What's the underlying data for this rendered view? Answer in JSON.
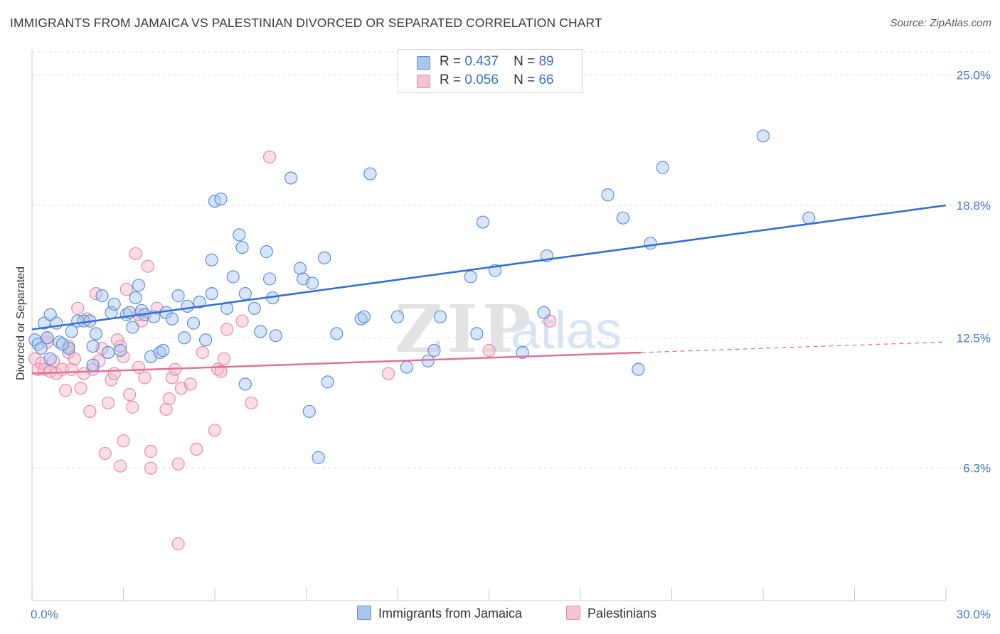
{
  "header": {
    "title": "IMMIGRANTS FROM JAMAICA VS PALESTINIAN DIVORCED OR SEPARATED CORRELATION CHART",
    "source": "Source: ZipAtlas.com"
  },
  "legend_top": {
    "rows": [
      {
        "r_label": "R =",
        "r_value": "0.437",
        "n_label": "N =",
        "n_value": "89"
      },
      {
        "r_label": "R =",
        "r_value": "0.056",
        "n_label": "N =",
        "n_value": "66"
      }
    ]
  },
  "legend_bottom": {
    "jamaica": "Immigrants from Jamaica",
    "palestinians": "Palestinians"
  },
  "watermark": {
    "zip": "ZIP",
    "atlas": "atlas"
  },
  "colors": {
    "blue_fill": "#a9c6ef",
    "blue_stroke": "#5b8fd8",
    "blue_line": "#2f6fd0",
    "pink_fill": "#f5b9cb",
    "pink_stroke": "#e88aa8",
    "pink_line": "#e0709a"
  },
  "chart_data": {
    "type": "scatter",
    "title": "IMMIGRANTS FROM JAMAICA VS PALESTINIAN DIVORCED OR SEPARATED CORRELATION CHART",
    "ylabel": "Divorced or Separated",
    "xlabel": "",
    "xlim": [
      0,
      30
    ],
    "ylim": [
      0,
      26.1
    ],
    "x_tick_labels": [
      "0.0%",
      "30.0%"
    ],
    "y_ticks": [
      6.3,
      12.5,
      18.8,
      25.0
    ],
    "y_tick_labels": [
      "6.3%",
      "12.5%",
      "18.8%",
      "25.0%"
    ],
    "grid": "horizontal dashed",
    "series": [
      {
        "name": "Immigrants from Jamaica",
        "trend": {
          "x": [
            0,
            30
          ],
          "y": [
            12.9,
            18.8
          ],
          "dashed_from": null
        },
        "points": [
          [
            0.1,
            12.4
          ],
          [
            0.2,
            12.2
          ],
          [
            0.3,
            12.0
          ],
          [
            0.4,
            13.2
          ],
          [
            0.5,
            12.5
          ],
          [
            0.6,
            13.6
          ],
          [
            0.8,
            13.2
          ],
          [
            0.9,
            12.3
          ],
          [
            1.2,
            12.0
          ],
          [
            1.3,
            12.8
          ],
          [
            1.5,
            13.3
          ],
          [
            1.7,
            13.3
          ],
          [
            1.9,
            13.3
          ],
          [
            2.0,
            11.2
          ],
          [
            2.1,
            12.7
          ],
          [
            2.3,
            14.5
          ],
          [
            2.5,
            11.8
          ],
          [
            2.6,
            13.7
          ],
          [
            2.7,
            14.1
          ],
          [
            2.9,
            11.9
          ],
          [
            3.1,
            13.6
          ],
          [
            3.2,
            13.7
          ],
          [
            3.3,
            13.0
          ],
          [
            3.4,
            14.4
          ],
          [
            3.5,
            15.0
          ],
          [
            3.6,
            13.8
          ],
          [
            3.7,
            13.6
          ],
          [
            3.9,
            11.6
          ],
          [
            4.0,
            13.5
          ],
          [
            4.2,
            11.8
          ],
          [
            4.3,
            11.9
          ],
          [
            4.4,
            13.7
          ],
          [
            4.6,
            13.4
          ],
          [
            4.8,
            14.5
          ],
          [
            5.0,
            12.5
          ],
          [
            5.1,
            14.0
          ],
          [
            5.3,
            13.2
          ],
          [
            5.5,
            14.2
          ],
          [
            5.7,
            12.4
          ],
          [
            5.9,
            16.2
          ],
          [
            5.9,
            14.6
          ],
          [
            6.0,
            19.0
          ],
          [
            6.2,
            19.1
          ],
          [
            6.4,
            13.9
          ],
          [
            6.6,
            15.4
          ],
          [
            6.8,
            17.4
          ],
          [
            6.9,
            16.8
          ],
          [
            7.0,
            14.6
          ],
          [
            7.3,
            13.9
          ],
          [
            7.5,
            12.8
          ],
          [
            7.7,
            16.6
          ],
          [
            7.8,
            15.3
          ],
          [
            7.9,
            14.4
          ],
          [
            8.0,
            12.6
          ],
          [
            8.5,
            20.1
          ],
          [
            8.8,
            15.8
          ],
          [
            8.9,
            15.3
          ],
          [
            9.1,
            9.0
          ],
          [
            9.2,
            15.1
          ],
          [
            9.4,
            6.8
          ],
          [
            9.6,
            16.3
          ],
          [
            9.7,
            10.4
          ],
          [
            10.0,
            12.7
          ],
          [
            10.8,
            13.4
          ],
          [
            10.9,
            13.5
          ],
          [
            11.1,
            20.3
          ],
          [
            12.0,
            13.5
          ],
          [
            12.3,
            11.1
          ],
          [
            13.0,
            11.4
          ],
          [
            13.2,
            11.9
          ],
          [
            13.4,
            13.5
          ],
          [
            14.4,
            15.4
          ],
          [
            14.6,
            12.7
          ],
          [
            14.8,
            18.0
          ],
          [
            15.2,
            15.7
          ],
          [
            16.1,
            11.8
          ],
          [
            16.8,
            13.7
          ],
          [
            16.9,
            16.4
          ],
          [
            18.9,
            19.3
          ],
          [
            19.4,
            18.2
          ],
          [
            19.9,
            11.0
          ],
          [
            20.3,
            17.0
          ],
          [
            20.7,
            20.6
          ],
          [
            24.0,
            22.1
          ],
          [
            25.5,
            18.2
          ],
          [
            7.0,
            10.3
          ],
          [
            2.0,
            12.1
          ],
          [
            1.0,
            12.2
          ],
          [
            0.6,
            11.5
          ]
        ]
      },
      {
        "name": "Palestinians",
        "trend": {
          "x": [
            0,
            30
          ],
          "y": [
            10.8,
            12.3
          ],
          "dashed_from": 20
        },
        "points": [
          [
            0.1,
            11.5
          ],
          [
            0.2,
            11.0
          ],
          [
            0.3,
            11.3
          ],
          [
            0.4,
            11.0
          ],
          [
            0.5,
            12.3
          ],
          [
            0.6,
            10.9
          ],
          [
            0.7,
            11.4
          ],
          [
            0.8,
            10.8
          ],
          [
            1.0,
            11.0
          ],
          [
            1.1,
            10.0
          ],
          [
            1.2,
            11.8
          ],
          [
            1.3,
            11.0
          ],
          [
            1.4,
            11.5
          ],
          [
            1.5,
            13.9
          ],
          [
            1.6,
            10.1
          ],
          [
            1.7,
            10.8
          ],
          [
            1.8,
            13.4
          ],
          [
            1.9,
            9.0
          ],
          [
            2.0,
            11.0
          ],
          [
            2.1,
            14.6
          ],
          [
            2.2,
            11.4
          ],
          [
            2.3,
            12.0
          ],
          [
            2.4,
            7.0
          ],
          [
            2.5,
            9.4
          ],
          [
            2.6,
            10.5
          ],
          [
            2.7,
            10.8
          ],
          [
            2.8,
            12.4
          ],
          [
            2.9,
            6.4
          ],
          [
            3.0,
            7.6
          ],
          [
            3.1,
            14.8
          ],
          [
            3.2,
            9.8
          ],
          [
            3.3,
            9.2
          ],
          [
            3.4,
            16.5
          ],
          [
            3.5,
            11.1
          ],
          [
            3.6,
            13.3
          ],
          [
            3.7,
            10.6
          ],
          [
            3.8,
            15.9
          ],
          [
            3.9,
            6.3
          ],
          [
            3.9,
            7.1
          ],
          [
            4.1,
            13.9
          ],
          [
            4.4,
            9.1
          ],
          [
            4.5,
            9.6
          ],
          [
            4.6,
            10.6
          ],
          [
            4.7,
            11.0
          ],
          [
            4.8,
            6.5
          ],
          [
            4.9,
            10.1
          ],
          [
            5.2,
            10.3
          ],
          [
            5.4,
            7.2
          ],
          [
            5.6,
            11.8
          ],
          [
            6.0,
            8.1
          ],
          [
            6.1,
            11.0
          ],
          [
            6.2,
            10.9
          ],
          [
            6.3,
            11.5
          ],
          [
            6.4,
            12.9
          ],
          [
            6.9,
            13.3
          ],
          [
            7.2,
            9.4
          ],
          [
            7.8,
            21.1
          ],
          [
            4.8,
            2.7
          ],
          [
            11.7,
            10.8
          ],
          [
            15.0,
            11.9
          ],
          [
            17.0,
            13.3
          ],
          [
            3.0,
            11.6
          ],
          [
            1.2,
            12.1
          ],
          [
            0.5,
            12.5
          ],
          [
            2.9,
            12.1
          ],
          [
            3.5,
            13.6
          ]
        ]
      }
    ]
  }
}
